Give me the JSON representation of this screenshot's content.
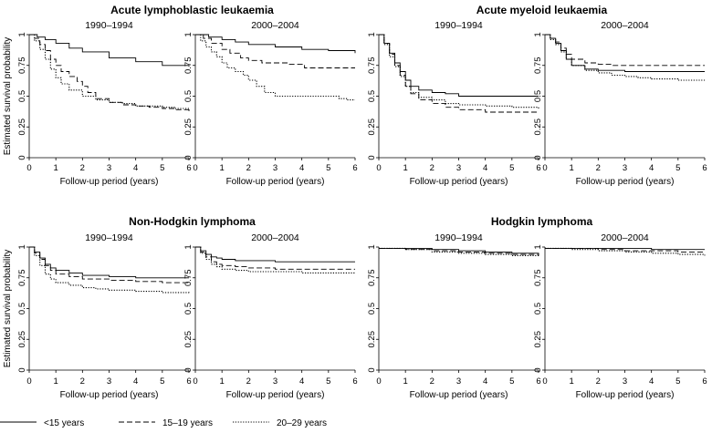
{
  "chart_data": {
    "type": "line",
    "y_axis_label": "Estimated survival probability",
    "x_axis_label": "Follow-up period (years)",
    "x_ticks": [
      "0",
      "1",
      "2",
      "3",
      "4",
      "5",
      "6"
    ],
    "y_ticks": [
      "0",
      "0.25",
      "0.5",
      "0.75",
      "1"
    ],
    "xlim": [
      0,
      6
    ],
    "ylim": [
      0,
      1
    ],
    "grid": false,
    "legend_position": "bottom-left",
    "series_names": [
      "<15 years",
      "15–19 years",
      "20–29 years"
    ],
    "series_styles": [
      "solid",
      "dashed",
      "dotted"
    ],
    "groups": [
      {
        "title": "Acute lymphoblastic leukaemia",
        "panels": [
          {
            "title": "1990–1994",
            "series": [
              {
                "name": "<15 years",
                "x": [
                  0,
                  0.3,
                  0.6,
                  1,
                  1.5,
                  2,
                  3,
                  4,
                  5,
                  6
                ],
                "y": [
                  1,
                  0.98,
                  0.96,
                  0.93,
                  0.89,
                  0.86,
                  0.81,
                  0.78,
                  0.75,
                  0.74
                ]
              },
              {
                "name": "15–19 years",
                "x": [
                  0,
                  0.2,
                  0.4,
                  0.6,
                  0.8,
                  1,
                  1.2,
                  1.5,
                  1.8,
                  2,
                  2.2,
                  2.5,
                  3,
                  3.5,
                  4,
                  4.5,
                  5,
                  5.5,
                  6
                ],
                "y": [
                  1,
                  0.97,
                  0.92,
                  0.87,
                  0.8,
                  0.75,
                  0.7,
                  0.66,
                  0.62,
                  0.58,
                  0.53,
                  0.48,
                  0.45,
                  0.43,
                  0.42,
                  0.41,
                  0.4,
                  0.39,
                  0.38
                ]
              },
              {
                "name": "20–29 years",
                "x": [
                  0,
                  0.2,
                  0.4,
                  0.6,
                  0.8,
                  1,
                  1.2,
                  1.5,
                  2,
                  2.5,
                  3,
                  3.5,
                  4,
                  5,
                  5.5,
                  6
                ],
                "y": [
                  1,
                  0.95,
                  0.88,
                  0.8,
                  0.72,
                  0.65,
                  0.6,
                  0.55,
                  0.5,
                  0.47,
                  0.45,
                  0.44,
                  0.42,
                  0.41,
                  0.4,
                  0.37
                ]
              }
            ]
          },
          {
            "title": "2000–2004",
            "series": [
              {
                "name": "<15 years",
                "x": [
                  0,
                  0.5,
                  1,
                  1.5,
                  2,
                  3,
                  4,
                  5,
                  6
                ],
                "y": [
                  1,
                  0.98,
                  0.96,
                  0.94,
                  0.92,
                  0.9,
                  0.88,
                  0.87,
                  0.85
                ]
              },
              {
                "name": "15–19 years",
                "x": [
                  0,
                  0.3,
                  0.6,
                  1,
                  1.3,
                  1.7,
                  2,
                  2.5,
                  3,
                  3.5,
                  4.1,
                  6
                ],
                "y": [
                  1,
                  0.97,
                  0.93,
                  0.88,
                  0.85,
                  0.81,
                  0.79,
                  0.77,
                  0.77,
                  0.76,
                  0.73,
                  0.73
                ]
              },
              {
                "name": "20–29 years",
                "x": [
                  0,
                  0.2,
                  0.4,
                  0.6,
                  0.8,
                  1,
                  1.2,
                  1.5,
                  1.8,
                  2,
                  2.3,
                  2.6,
                  3,
                  3.5,
                  4,
                  4.5,
                  5,
                  5.4,
                  5.7,
                  6
                ],
                "y": [
                  1,
                  0.95,
                  0.9,
                  0.86,
                  0.82,
                  0.77,
                  0.73,
                  0.7,
                  0.67,
                  0.63,
                  0.58,
                  0.53,
                  0.5,
                  0.5,
                  0.5,
                  0.5,
                  0.5,
                  0.48,
                  0.47,
                  0.47
                ]
              }
            ]
          }
        ]
      },
      {
        "title": "Acute myeloid leukaemia",
        "panels": [
          {
            "title": "1990–1994",
            "series": [
              {
                "name": "<15 years",
                "x": [
                  0,
                  0.2,
                  0.4,
                  0.6,
                  0.8,
                  1,
                  1.2,
                  1.5,
                  2,
                  2.5,
                  3,
                  4,
                  5,
                  6
                ],
                "y": [
                  1,
                  0.93,
                  0.85,
                  0.77,
                  0.7,
                  0.63,
                  0.58,
                  0.55,
                  0.53,
                  0.52,
                  0.5,
                  0.5,
                  0.5,
                  0.5
                ]
              },
              {
                "name": "15–19 years",
                "x": [
                  0,
                  0.2,
                  0.4,
                  0.6,
                  0.8,
                  1,
                  1.2,
                  1.5,
                  2,
                  2.5,
                  3,
                  4,
                  5,
                  6
                ],
                "y": [
                  1,
                  0.93,
                  0.84,
                  0.75,
                  0.67,
                  0.58,
                  0.52,
                  0.47,
                  0.44,
                  0.41,
                  0.39,
                  0.37,
                  0.37,
                  0.37
                ]
              },
              {
                "name": "20–29 years",
                "x": [
                  0,
                  0.2,
                  0.4,
                  0.6,
                  0.8,
                  1,
                  1.2,
                  1.5,
                  2,
                  2.5,
                  3,
                  4,
                  5,
                  6
                ],
                "y": [
                  1,
                  0.92,
                  0.82,
                  0.74,
                  0.66,
                  0.58,
                  0.53,
                  0.49,
                  0.47,
                  0.44,
                  0.43,
                  0.42,
                  0.41,
                  0.4
                ]
              }
            ]
          },
          {
            "title": "2000–2004",
            "series": [
              {
                "name": "<15 years",
                "x": [
                  0,
                  0.2,
                  0.4,
                  0.6,
                  0.8,
                  1,
                  1.5,
                  2,
                  3,
                  4,
                  5,
                  6
                ],
                "y": [
                  1,
                  0.97,
                  0.93,
                  0.87,
                  0.8,
                  0.75,
                  0.72,
                  0.71,
                  0.7,
                  0.7,
                  0.7,
                  0.7
                ]
              },
              {
                "name": "15–19 years",
                "x": [
                  0,
                  0.2,
                  0.4,
                  0.6,
                  0.8,
                  1,
                  1.5,
                  2,
                  2.5,
                  3,
                  4,
                  5,
                  6
                ],
                "y": [
                  1,
                  0.97,
                  0.94,
                  0.89,
                  0.84,
                  0.8,
                  0.77,
                  0.76,
                  0.75,
                  0.75,
                  0.75,
                  0.75,
                  0.75
                ]
              },
              {
                "name": "20–29 years",
                "x": [
                  0,
                  0.2,
                  0.4,
                  0.6,
                  0.8,
                  1,
                  1.5,
                  2,
                  2.5,
                  3,
                  3.5,
                  4,
                  5,
                  6
                ],
                "y": [
                  1,
                  0.96,
                  0.92,
                  0.86,
                  0.8,
                  0.75,
                  0.71,
                  0.69,
                  0.67,
                  0.66,
                  0.65,
                  0.64,
                  0.63,
                  0.63
                ]
              }
            ]
          }
        ]
      },
      {
        "title": "Non-Hodgkin lymphoma",
        "panels": [
          {
            "title": "1990–1994",
            "series": [
              {
                "name": "<15 years",
                "x": [
                  0,
                  0.2,
                  0.4,
                  0.6,
                  0.8,
                  1,
                  1.5,
                  2,
                  3,
                  4,
                  5,
                  6
                ],
                "y": [
                  1,
                  0.96,
                  0.91,
                  0.86,
                  0.83,
                  0.81,
                  0.79,
                  0.77,
                  0.76,
                  0.75,
                  0.75,
                  0.75
                ]
              },
              {
                "name": "15–19 years",
                "x": [
                  0,
                  0.2,
                  0.4,
                  0.6,
                  0.8,
                  1,
                  1.5,
                  2,
                  3,
                  4,
                  5,
                  6
                ],
                "y": [
                  1,
                  0.95,
                  0.9,
                  0.85,
                  0.81,
                  0.78,
                  0.76,
                  0.74,
                  0.73,
                  0.72,
                  0.71,
                  0.71
                ]
              },
              {
                "name": "20–29 years",
                "x": [
                  0,
                  0.2,
                  0.4,
                  0.6,
                  0.8,
                  1,
                  1.5,
                  2,
                  2.5,
                  3,
                  3.5,
                  4,
                  5,
                  6
                ],
                "y": [
                  1,
                  0.93,
                  0.85,
                  0.78,
                  0.74,
                  0.71,
                  0.69,
                  0.67,
                  0.66,
                  0.65,
                  0.65,
                  0.64,
                  0.63,
                  0.62
                ]
              }
            ]
          },
          {
            "title": "2000–2004",
            "series": [
              {
                "name": "<15 years",
                "x": [
                  0,
                  0.2,
                  0.4,
                  0.6,
                  0.8,
                  1,
                  1.5,
                  2,
                  3,
                  4,
                  5,
                  6
                ],
                "y": [
                  1,
                  0.97,
                  0.94,
                  0.92,
                  0.91,
                  0.9,
                  0.89,
                  0.89,
                  0.88,
                  0.88,
                  0.88,
                  0.88
                ]
              },
              {
                "name": "15–19 years",
                "x": [
                  0,
                  0.2,
                  0.4,
                  0.6,
                  0.8,
                  1,
                  1.5,
                  2,
                  3,
                  4,
                  5,
                  6
                ],
                "y": [
                  1,
                  0.96,
                  0.92,
                  0.88,
                  0.86,
                  0.85,
                  0.84,
                  0.83,
                  0.82,
                  0.82,
                  0.82,
                  0.82
                ]
              },
              {
                "name": "20–29 years",
                "x": [
                  0,
                  0.2,
                  0.4,
                  0.6,
                  0.8,
                  1,
                  1.5,
                  2,
                  3,
                  4,
                  5,
                  6
                ],
                "y": [
                  1,
                  0.95,
                  0.9,
                  0.86,
                  0.84,
                  0.82,
                  0.81,
                  0.8,
                  0.8,
                  0.79,
                  0.79,
                  0.79
                ]
              }
            ]
          }
        ]
      },
      {
        "title": "Hodgkin lymphoma",
        "panels": [
          {
            "title": "1990–1994",
            "series": [
              {
                "name": "<15 years",
                "x": [
                  0,
                  1,
                  2,
                  3,
                  4,
                  5,
                  6
                ],
                "y": [
                  0.99,
                  0.99,
                  0.98,
                  0.97,
                  0.96,
                  0.95,
                  0.94
                ]
              },
              {
                "name": "15–19 years",
                "x": [
                  0,
                  1,
                  2,
                  3,
                  4,
                  5,
                  6
                ],
                "y": [
                  0.99,
                  0.98,
                  0.97,
                  0.96,
                  0.95,
                  0.94,
                  0.93
                ]
              },
              {
                "name": "20–29 years",
                "x": [
                  0,
                  1,
                  2,
                  3,
                  4,
                  5,
                  6
                ],
                "y": [
                  0.99,
                  0.98,
                  0.96,
                  0.95,
                  0.94,
                  0.93,
                  0.92
                ]
              }
            ]
          },
          {
            "title": "2000–2004",
            "series": [
              {
                "name": "<15 years",
                "x": [
                  0,
                  1,
                  2,
                  3,
                  4,
                  5,
                  6
                ],
                "y": [
                  0.99,
                  0.99,
                  0.99,
                  0.99,
                  0.98,
                  0.98,
                  0.98
                ]
              },
              {
                "name": "15–19 years",
                "x": [
                  0,
                  1,
                  2,
                  3,
                  4,
                  5,
                  6
                ],
                "y": [
                  0.99,
                  0.99,
                  0.98,
                  0.97,
                  0.97,
                  0.96,
                  0.96
                ]
              },
              {
                "name": "20–29 years",
                "x": [
                  0,
                  1,
                  2,
                  3,
                  4,
                  5,
                  6
                ],
                "y": [
                  0.99,
                  0.98,
                  0.97,
                  0.96,
                  0.95,
                  0.94,
                  0.93
                ]
              }
            ]
          }
        ]
      }
    ]
  }
}
